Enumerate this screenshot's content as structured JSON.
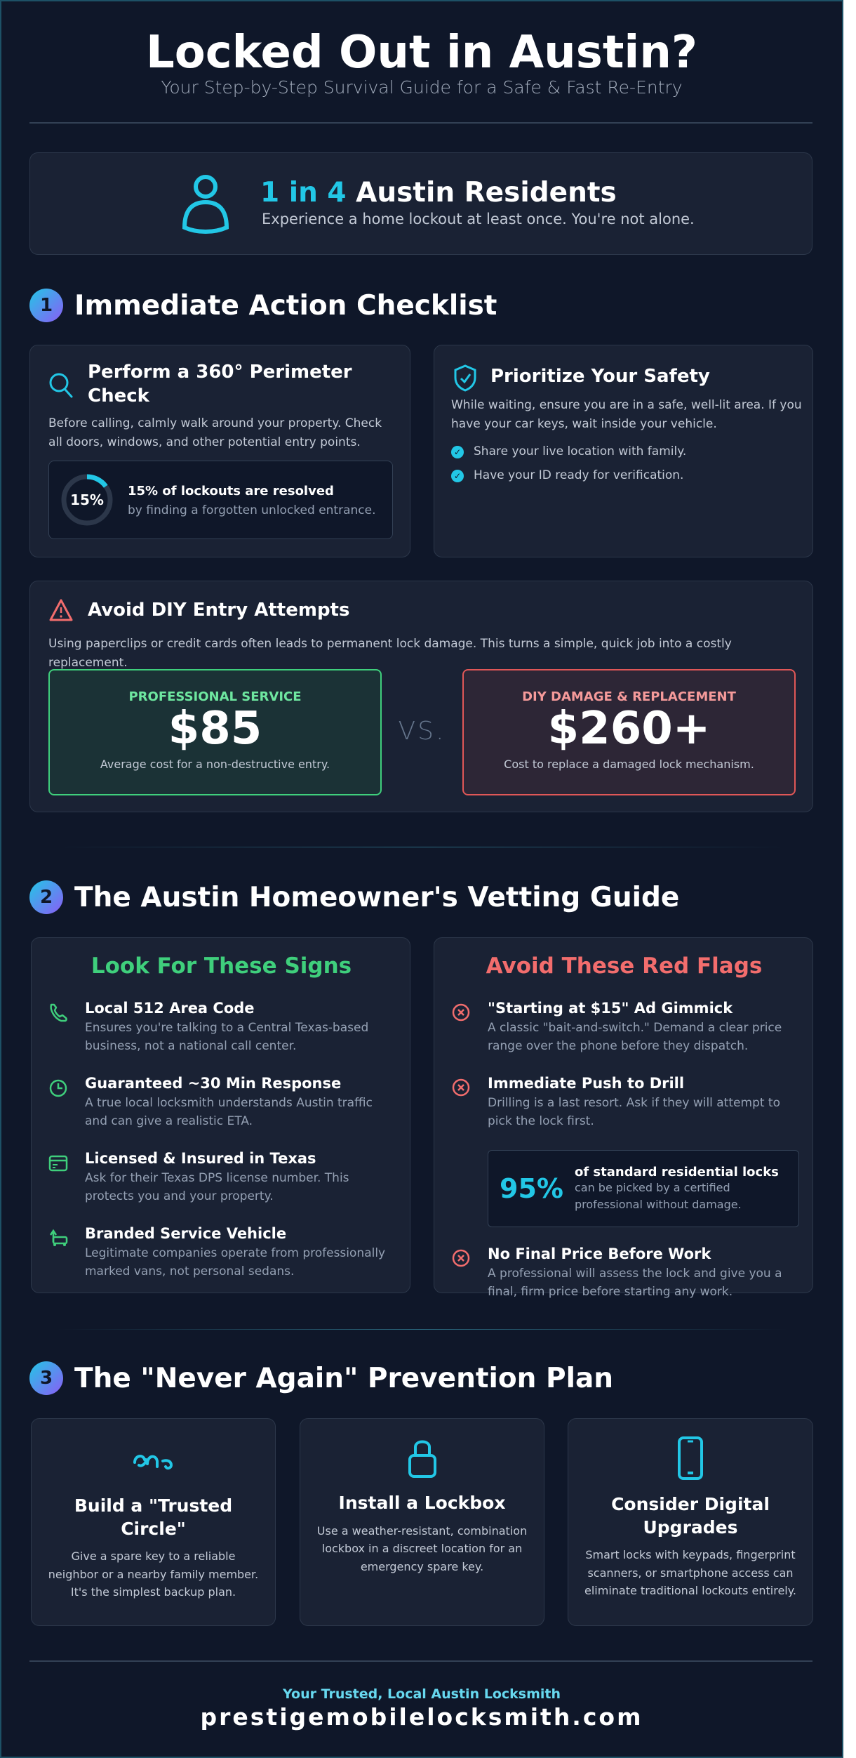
{
  "header": {
    "title": "Locked Out in Austin?",
    "subtitle": "Your Step-by-Step Survival Guide for a Safe & Fast Re-Entry"
  },
  "stat": {
    "highlight": "1 in 4",
    "title_rest": " Austin Residents",
    "text": "Experience a home lockout at least once. You're not alone.",
    "icon": "user-icon"
  },
  "colors": {
    "accent": "#22c7e6",
    "green": "#4ade80",
    "red": "#f26d6d",
    "background": "#0f1729",
    "card": "#1a2234"
  },
  "section1": {
    "number": "1",
    "title": "Immediate Action Checklist",
    "perimeter": {
      "title": "Perform a 360° Perimeter Check",
      "text": "Before calling, calmly walk around your property. Check all doors, windows, and other potential entry points.",
      "ring_label": "15%",
      "ring_percent": 15,
      "stat_title": "15% of lockouts are resolved",
      "stat_text": "by finding a forgotten unlocked entrance."
    },
    "safety": {
      "title": "Prioritize Your Safety",
      "text": "While waiting, ensure you are in a safe, well-lit area. If you have your car keys, wait inside your vehicle.",
      "checks": [
        "Share your live location with family.",
        "Have your ID ready for verification."
      ]
    },
    "diy": {
      "title": "Avoid DIY Entry Attempts",
      "text": "Using paperclips or credit cards often leads to permanent lock damage. This turns a simple, quick job into a costly replacement.",
      "pro": {
        "label": "PROFESSIONAL SERVICE",
        "price": "$85",
        "note": "Average cost for a non-destructive entry."
      },
      "vs": "VS.",
      "damage": {
        "label": "DIY DAMAGE & REPLACEMENT",
        "price": "$260+",
        "note": "Cost to replace a damaged lock mechanism."
      }
    }
  },
  "section2": {
    "number": "2",
    "title": "The Austin Homeowner's Vetting Guide",
    "good": {
      "title": "Look For These Signs",
      "items": [
        {
          "icon": "phone-icon",
          "title": "Local 512 Area Code",
          "text": "Ensures you're talking to a Central Texas-based business, not a national call center."
        },
        {
          "icon": "clock-icon",
          "title": "Guaranteed ~30 Min Response",
          "text": "A true local locksmith understands Austin traffic and can give a realistic ETA."
        },
        {
          "icon": "license-card-icon",
          "title": "Licensed & Insured in Texas",
          "text": "Ask for their Texas DPS license number. This protects you and your property."
        },
        {
          "icon": "van-icon",
          "title": "Branded Service Vehicle",
          "text": "Legitimate companies operate from professionally marked vans, not personal sedans."
        }
      ]
    },
    "bad": {
      "title": "Avoid These Red Flags",
      "items": [
        {
          "title": "\"Starting at $15\" Ad Gimmick",
          "text": "A classic \"bait-and-switch.\" Demand a clear price range over the phone before they dispatch."
        },
        {
          "title": "Immediate Push to Drill",
          "text": "Drilling is a last resort. Ask if they will attempt to pick the lock first."
        },
        {
          "title": "No Final Price Before Work",
          "text": "A professional will assess the lock and give you a final, firm price before starting any work."
        }
      ],
      "stat": {
        "value": "95%",
        "title": "of standard residential locks",
        "text": "can be picked by a certified professional without damage."
      }
    }
  },
  "section3": {
    "number": "3",
    "title": "The \"Never Again\" Prevention Plan",
    "cards": [
      {
        "icon": "people-circle-icon",
        "title": "Build a \"Trusted Circle\"",
        "text": "Give a spare key to a reliable neighbor or a nearby family member. It's the simplest backup plan."
      },
      {
        "icon": "lock-icon",
        "title": "Install a Lockbox",
        "text": "Use a weather-resistant, combination lockbox in a discreet location for an emergency spare key."
      },
      {
        "icon": "smartphone-icon",
        "title": "Consider Digital Upgrades",
        "text": "Smart locks with keypads, fingerprint scanners, or smartphone access can eliminate traditional lockouts entirely."
      }
    ]
  },
  "footer": {
    "tagline": "Your Trusted, Local Austin Locksmith",
    "website": "prestigemobilelocksmith.com"
  }
}
